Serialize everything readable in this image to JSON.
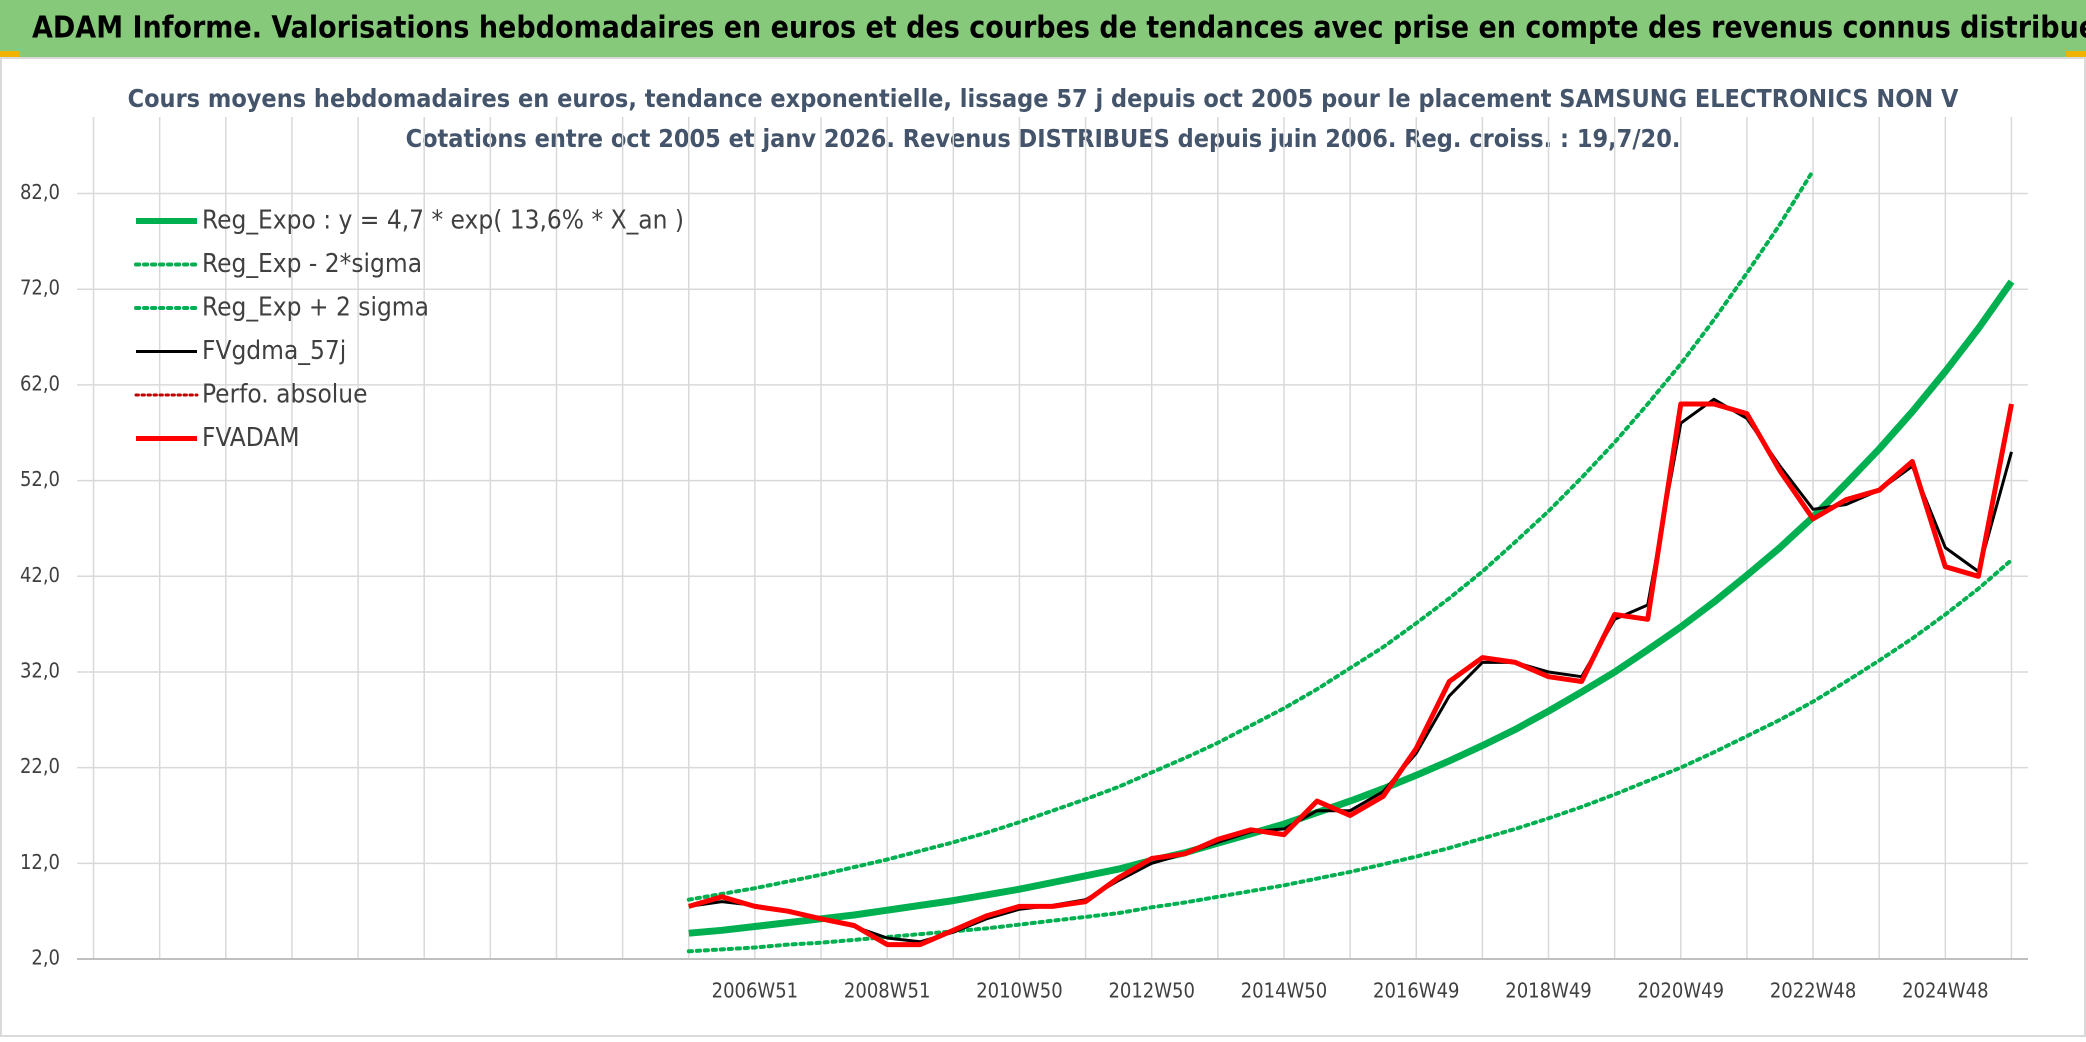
{
  "header": {
    "title": "ADAM Informe. Valorisations hebdomadaires en euros et des courbes de tendances avec prise en compte des revenus connus distribués"
  },
  "chart_data": {
    "type": "line",
    "title": "Cours moyens hebdomadaires en euros, tendance exponentielle, lissage 57 j depuis oct 2005 pour le placement SAMSUNG ELECTRONICS NON V",
    "subtitle": "Cotations entre oct 2005 et janv 2026. Revenus DISTRIBUES depuis juin 2006. Reg. croiss. : 19,7/20.",
    "categories": [
      null,
      null,
      null,
      null,
      null,
      null,
      null,
      null,
      null,
      null,
      null,
      null,
      null,
      null,
      null,
      null,
      null,
      null,
      null,
      null,
      "2006W51",
      null,
      null,
      null,
      "2008W51",
      null,
      null,
      null,
      "2010W50",
      null,
      null,
      null,
      "2012W50",
      null,
      null,
      null,
      "2014W50",
      null,
      null,
      null,
      "2016W49",
      null,
      null,
      null,
      "2018W49",
      null,
      null,
      null,
      "2020W49",
      null,
      null,
      null,
      "2022W48",
      null,
      null,
      null,
      "2024W48",
      null,
      null
    ],
    "ylim": [
      2,
      90
    ],
    "yticks": [
      {
        "value": 2,
        "label": "2,0"
      },
      {
        "value": 12,
        "label": "12,0"
      },
      {
        "value": 22,
        "label": "22,0"
      },
      {
        "value": 32,
        "label": "32,0"
      },
      {
        "value": 42,
        "label": "42,0"
      },
      {
        "value": 52,
        "label": "52,0"
      },
      {
        "value": 62,
        "label": "62,0"
      },
      {
        "value": 72,
        "label": "72,0"
      },
      {
        "value": 82,
        "label": "82,0"
      }
    ],
    "grid": true,
    "legend": "top-left",
    "series": [
      {
        "name": "Reg_Expo : y = 4,7 * exp( 13,6% *  X_an )",
        "color": "#00b050",
        "style": "solid",
        "width": 7,
        "values": [
          null,
          null,
          null,
          null,
          null,
          null,
          null,
          null,
          null,
          null,
          null,
          null,
          null,
          null,
          null,
          null,
          null,
          null,
          4.7,
          5.0,
          5.4,
          5.8,
          6.2,
          6.6,
          7.1,
          7.6,
          8.1,
          8.7,
          9.3,
          10.0,
          10.7,
          11.4,
          12.3,
          13.1,
          14.1,
          15.1,
          16.1,
          17.3,
          18.5,
          19.8,
          21.2,
          22.7,
          24.3,
          26.0,
          27.9,
          29.9,
          32.0,
          34.3,
          36.7,
          39.3,
          42.1,
          45.0,
          48.2,
          51.7,
          55.3,
          59.2,
          63.4,
          67.9,
          72.8
        ]
      },
      {
        "name": "Reg_Exp - 2*sigma",
        "color": "#00b050",
        "style": "dotted",
        "width": 4,
        "values": [
          null,
          null,
          null,
          null,
          null,
          null,
          null,
          null,
          null,
          null,
          null,
          null,
          null,
          null,
          null,
          null,
          null,
          null,
          2.8,
          3.0,
          3.2,
          3.5,
          3.7,
          4.0,
          4.3,
          4.6,
          4.9,
          5.2,
          5.6,
          6.0,
          6.4,
          6.8,
          7.4,
          7.9,
          8.5,
          9.1,
          9.7,
          10.4,
          11.1,
          11.9,
          12.7,
          13.6,
          14.6,
          15.6,
          16.7,
          17.9,
          19.2,
          20.6,
          22.0,
          23.6,
          25.3,
          27.0,
          28.9,
          31.0,
          33.2,
          35.5,
          38.0,
          40.7,
          43.7
        ]
      },
      {
        "name": "Reg_Exp + 2 sigma",
        "color": "#00b050",
        "style": "dotted",
        "width": 4,
        "values": [
          null,
          null,
          null,
          null,
          null,
          null,
          null,
          null,
          null,
          null,
          null,
          null,
          null,
          null,
          null,
          null,
          null,
          null,
          8.2,
          8.8,
          9.4,
          10.1,
          10.8,
          11.6,
          12.4,
          13.3,
          14.2,
          15.2,
          16.3,
          17.5,
          18.7,
          20.0,
          21.5,
          23.0,
          24.6,
          26.4,
          28.2,
          30.2,
          32.4,
          34.6,
          37.1,
          39.7,
          42.5,
          45.6,
          48.8,
          52.3,
          56.0,
          60.0,
          64.2,
          68.8,
          73.7,
          78.8,
          84.4,
          null,
          null,
          null,
          null,
          null,
          null
        ]
      },
      {
        "name": "FVgdma_57j",
        "color": "#000000",
        "style": "solid",
        "width": 3,
        "values": [
          null,
          null,
          null,
          null,
          null,
          null,
          null,
          null,
          null,
          null,
          null,
          null,
          null,
          null,
          null,
          null,
          null,
          null,
          7.5,
          8.0,
          7.6,
          7.0,
          6.3,
          5.4,
          4.2,
          3.8,
          4.8,
          6.2,
          7.2,
          7.6,
          8.2,
          10.2,
          12.0,
          13.0,
          14.2,
          15.3,
          15.6,
          17.5,
          17.5,
          19.5,
          23.5,
          29.5,
          33.0,
          33.0,
          32.0,
          31.5,
          37.5,
          39.0,
          58.0,
          60.5,
          58.5,
          53.5,
          49.0,
          49.5,
          51.0,
          53.5,
          45.0,
          42.5,
          55.0
        ]
      },
      {
        "name": "Perfo. absolue",
        "color": "#c00000",
        "style": "dotted",
        "width": 3,
        "values": [
          null,
          null,
          null,
          null,
          null,
          null,
          null,
          null,
          null,
          null,
          null,
          null,
          null,
          null,
          null,
          null,
          null,
          null,
          null,
          null,
          null,
          null,
          null,
          null,
          null,
          null,
          null,
          null,
          null,
          null,
          null,
          null,
          null,
          null,
          null,
          null,
          null,
          null,
          null,
          null,
          null,
          null,
          null,
          null,
          null,
          null,
          null,
          null,
          null,
          null,
          null,
          null,
          null,
          null,
          null,
          null,
          null,
          null,
          null
        ]
      },
      {
        "name": "FVADAM",
        "color": "#ff0000",
        "style": "solid",
        "width": 5,
        "values": [
          null,
          null,
          null,
          null,
          null,
          null,
          null,
          null,
          null,
          null,
          null,
          null,
          null,
          null,
          null,
          null,
          null,
          null,
          7.5,
          8.5,
          7.5,
          7.0,
          6.2,
          5.5,
          3.5,
          3.5,
          5.0,
          6.5,
          7.5,
          7.5,
          8.0,
          10.5,
          12.5,
          13.0,
          14.5,
          15.5,
          15.0,
          18.5,
          17.0,
          19.0,
          24.0,
          31.0,
          33.5,
          33.0,
          31.5,
          31.0,
          38.0,
          37.5,
          60.0,
          60.0,
          59.0,
          53.0,
          48.0,
          50.0,
          51.0,
          54.0,
          43.0,
          42.0,
          60.0
        ]
      }
    ]
  }
}
